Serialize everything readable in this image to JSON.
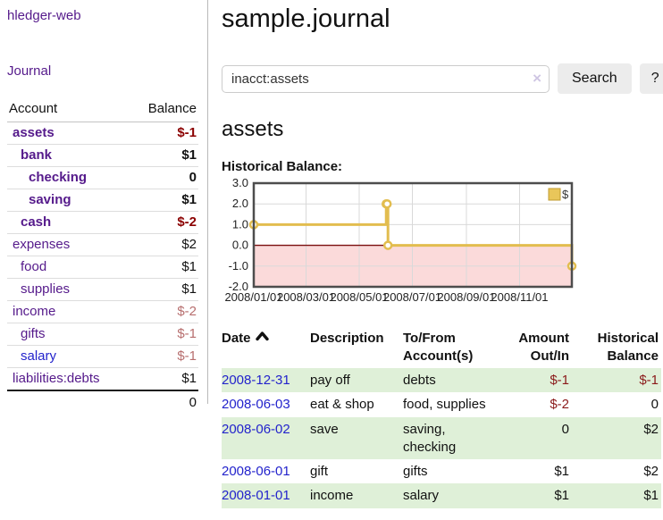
{
  "sidebar": {
    "app_title": "hledger-web",
    "journal_link": "Journal",
    "accounts": {
      "header_account": "Account",
      "header_balance": "Balance",
      "rows": [
        {
          "name": "assets",
          "indent": 0,
          "bold": true,
          "link": "purple",
          "balance": "$-1",
          "tone": "neg-strong"
        },
        {
          "name": "bank",
          "indent": 1,
          "bold": true,
          "link": "purple",
          "balance": "$1",
          "tone": "plain"
        },
        {
          "name": "checking",
          "indent": 2,
          "bold": true,
          "link": "purple",
          "balance": "0",
          "tone": "plain"
        },
        {
          "name": "saving",
          "indent": 2,
          "bold": true,
          "link": "purple",
          "balance": "$1",
          "tone": "plain"
        },
        {
          "name": "cash",
          "indent": 1,
          "bold": true,
          "link": "purple",
          "balance": "$-2",
          "tone": "neg-strong"
        },
        {
          "name": "expenses",
          "indent": 0,
          "bold": false,
          "link": "purple",
          "balance": "$2",
          "tone": "plain"
        },
        {
          "name": "food",
          "indent": 1,
          "bold": false,
          "link": "purple",
          "balance": "$1",
          "tone": "plain"
        },
        {
          "name": "supplies",
          "indent": 1,
          "bold": false,
          "link": "purple",
          "balance": "$1",
          "tone": "plain"
        },
        {
          "name": "income",
          "indent": 0,
          "bold": false,
          "link": "purple",
          "balance": "$-2",
          "tone": "neg-soft"
        },
        {
          "name": "gifts",
          "indent": 1,
          "bold": false,
          "link": "purple",
          "balance": "$-1",
          "tone": "neg-soft"
        },
        {
          "name": "salary",
          "indent": 1,
          "bold": false,
          "link": "blue",
          "balance": "$-1",
          "tone": "neg-soft"
        },
        {
          "name": "liabilities:debts",
          "indent": 0,
          "bold": false,
          "link": "purple",
          "balance": "$1",
          "tone": "plain"
        }
      ],
      "total": "0"
    }
  },
  "main": {
    "title": "sample.journal",
    "search": {
      "value": "inacct:assets",
      "clear_icon": "×",
      "button_label": "Search",
      "help_label": "?"
    },
    "account_heading": "assets",
    "chart_label": "Historical Balance:",
    "register": {
      "headers": {
        "date": "Date",
        "description": "Description",
        "accounts": "To/From Account(s)",
        "amount": "Amount Out/In",
        "balance": "Historical Balance"
      },
      "rows": [
        {
          "date": "2008-12-31",
          "description": "pay off",
          "accounts": "debts",
          "amount": "$-1",
          "amount_tone": "neg",
          "balance": "$-1",
          "balance_tone": "neg"
        },
        {
          "date": "2008-06-03",
          "description": "eat & shop",
          "accounts": "food, supplies",
          "amount": "$-2",
          "amount_tone": "neg",
          "balance": "0",
          "balance_tone": "plain"
        },
        {
          "date": "2008-06-02",
          "description": "save",
          "accounts": "saving, checking",
          "amount": "0",
          "amount_tone": "plain",
          "balance": "$2",
          "balance_tone": "plain"
        },
        {
          "date": "2008-06-01",
          "description": "gift",
          "accounts": "gifts",
          "amount": "$1",
          "amount_tone": "plain",
          "balance": "$2",
          "balance_tone": "plain"
        },
        {
          "date": "2008-01-01",
          "description": "income",
          "accounts": "salary",
          "amount": "$1",
          "amount_tone": "plain",
          "balance": "$1",
          "balance_tone": "plain"
        }
      ]
    }
  },
  "chart_data": {
    "type": "line",
    "step": true,
    "title": "Historical Balance",
    "series": [
      {
        "name": "$",
        "points": [
          [
            "2008-01-01",
            1
          ],
          [
            "2008-06-01",
            2
          ],
          [
            "2008-06-02",
            2
          ],
          [
            "2008-06-03",
            0
          ],
          [
            "2008-12-31",
            -1
          ]
        ]
      }
    ],
    "x_range": [
      "2008-01-01",
      "2008-12-31"
    ],
    "ylim": [
      -2,
      3
    ],
    "y_ticks": [
      "3.0",
      "2.0",
      "1.0",
      "0.0",
      "-1.0",
      "-2.0"
    ],
    "x_ticks": [
      "2008/01/01",
      "2008/03/01",
      "2008/05/01",
      "2008/07/01",
      "2008/09/01",
      "2008/11/01"
    ],
    "grid": true,
    "legend": {
      "label": "$",
      "position": "top-right"
    }
  },
  "colors": {
    "link_purple": "#551a8b",
    "link_blue": "#2323cc",
    "negative_strong": "#8b0000",
    "negative_soft": "#b76e6e",
    "negative_register": "#8b1a1a",
    "row_green": "#dff0d8",
    "chart_line_gold": "#e2bd4f",
    "chart_negative_fill": "#fbdada",
    "chart_zero_line": "#7b0f0f",
    "chart_border": "#4d4d4d"
  }
}
